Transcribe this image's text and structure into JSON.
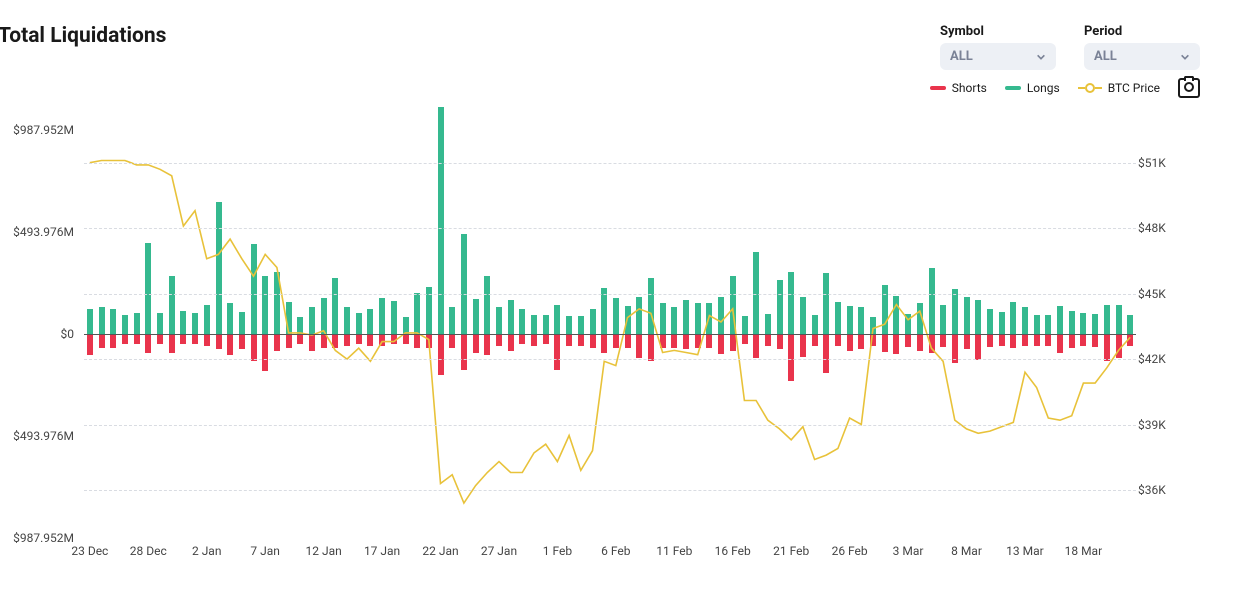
{
  "title": "Total Liquidations",
  "selectors": {
    "symbol": {
      "label": "Symbol",
      "value": "ALL"
    },
    "period": {
      "label": "Period",
      "value": "ALL"
    }
  },
  "legend": {
    "shorts": "Shorts",
    "longs": "Longs",
    "price": "BTC Price"
  },
  "colors": {
    "shorts": "#e9344c",
    "longs": "#35b98f",
    "price": "#e8c23a",
    "grid": "#d9dce2",
    "axis_text": "#444444",
    "dd_bg": "#edf0f5",
    "dd_text": "#7a8296",
    "background": "#ffffff"
  },
  "fonts": {
    "title": 21,
    "label": 13,
    "tick": 12
  },
  "y_left": {
    "min": -987.952,
    "max": 987.952,
    "ticks": [
      {
        "v": 987.952,
        "label": "$987.952M"
      },
      {
        "v": 493.976,
        "label": "$493.976M"
      },
      {
        "v": 0,
        "label": "$0"
      },
      {
        "v": -493.976,
        "label": "$493.976M"
      },
      {
        "v": -987.952,
        "label": "$987.952M"
      }
    ]
  },
  "y_right": {
    "min": 33800,
    "max": 52500,
    "ticks": [
      {
        "v": 51000,
        "label": "$51K"
      },
      {
        "v": 48000,
        "label": "$48K"
      },
      {
        "v": 45000,
        "label": "$45K"
      },
      {
        "v": 42000,
        "label": "$42K"
      },
      {
        "v": 39000,
        "label": "$39K"
      },
      {
        "v": 36000,
        "label": "$36K"
      }
    ]
  },
  "x_labels": [
    "23 Dec",
    "28 Dec",
    "2 Jan",
    "7 Jan",
    "12 Jan",
    "17 Jan",
    "22 Jan",
    "27 Jan",
    "1 Feb",
    "6 Feb",
    "11 Feb",
    "16 Feb",
    "21 Feb",
    "26 Feb",
    "3 Mar",
    "8 Mar",
    "13 Mar",
    "18 Mar"
  ],
  "n_points": 90,
  "longs": [
    120,
    130,
    120,
    90,
    100,
    440,
    100,
    280,
    110,
    100,
    140,
    640,
    150,
    105,
    435,
    280,
    300,
    155,
    80,
    130,
    175,
    270,
    130,
    100,
    120,
    175,
    160,
    80,
    200,
    230,
    1100,
    130,
    485,
    170,
    280,
    130,
    165,
    120,
    90,
    90,
    140,
    85,
    85,
    120,
    225,
    175,
    135,
    180,
    270,
    150,
    130,
    165,
    150,
    150,
    180,
    280,
    85,
    395,
    95,
    260,
    300,
    180,
    90,
    295,
    155,
    135,
    130,
    80,
    235,
    185,
    95,
    150,
    320,
    140,
    220,
    180,
    165,
    120,
    105,
    155,
    130,
    90,
    90,
    135,
    110,
    100,
    95,
    140,
    140,
    90
  ],
  "shorts": [
    100,
    70,
    70,
    50,
    50,
    90,
    50,
    90,
    50,
    50,
    60,
    75,
    100,
    75,
    130,
    180,
    80,
    70,
    50,
    80,
    70,
    70,
    60,
    50,
    60,
    60,
    50,
    50,
    70,
    70,
    200,
    70,
    175,
    90,
    100,
    60,
    80,
    50,
    60,
    50,
    175,
    60,
    60,
    70,
    90,
    70,
    70,
    115,
    130,
    70,
    70,
    75,
    70,
    70,
    95,
    80,
    50,
    115,
    60,
    75,
    230,
    110,
    60,
    190,
    60,
    80,
    75,
    60,
    85,
    95,
    65,
    80,
    90,
    65,
    140,
    75,
    125,
    65,
    60,
    70,
    60,
    60,
    60,
    90,
    70,
    60,
    65,
    130,
    115,
    60
  ],
  "price": [
    51000,
    51100,
    51100,
    51100,
    50900,
    50900,
    50700,
    50400,
    48100,
    48800,
    46600,
    46800,
    47500,
    46600,
    45800,
    46800,
    46200,
    43200,
    43200,
    43100,
    43300,
    42400,
    42000,
    42500,
    41900,
    42800,
    42800,
    43200,
    43200,
    42900,
    36300,
    36700,
    35400,
    36200,
    36800,
    37300,
    36800,
    36800,
    37700,
    38100,
    37300,
    38500,
    36900,
    37800,
    41900,
    41700,
    43900,
    44300,
    44100,
    42300,
    42400,
    42300,
    42200,
    44000,
    43700,
    44300,
    40100,
    40100,
    39200,
    38800,
    38300,
    38900,
    37400,
    37600,
    37900,
    39300,
    39000,
    43400,
    43600,
    44500,
    43800,
    44200,
    42500,
    41900,
    39200,
    38800,
    38600,
    38700,
    38900,
    39100,
    41400,
    40700,
    39300,
    39200,
    39400,
    40900,
    40900,
    41600,
    42400,
    43000
  ]
}
